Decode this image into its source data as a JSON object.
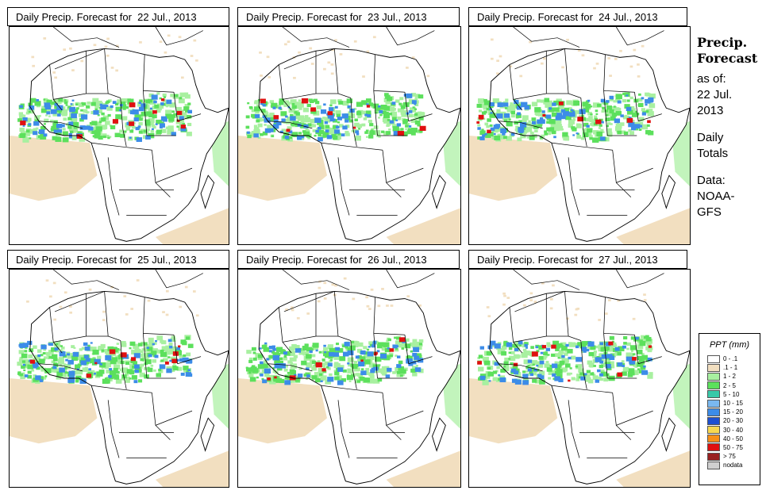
{
  "panels": [
    {
      "title": "Daily Precip. Forecast for  22 Jul., 2013"
    },
    {
      "title": "Daily Precip. Forecast for  23 Jul., 2013"
    },
    {
      "title": "Daily Precip. Forecast for  24 Jul., 2013"
    },
    {
      "title": "Daily Precip. Forecast for  25 Jul., 2013"
    },
    {
      "title": "Daily Precip. Forecast for  26 Jul., 2013"
    },
    {
      "title": "Daily Precip. Forecast for  27 Jul., 2013"
    }
  ],
  "side": {
    "title_line1": "Precip.",
    "title_line2": "Forecast",
    "asof_line1": "as of:",
    "asof_line2": "22 Jul.",
    "asof_line3": "2013",
    "daily_line1": "Daily",
    "daily_line2": "Totals",
    "data_line1": "Data:",
    "data_line2": "NOAA-",
    "data_line3": "GFS"
  },
  "legend": {
    "title": "PPT (mm)",
    "items": [
      {
        "label": "0 - .1",
        "color": "#ffffff"
      },
      {
        "label": ".1 - 1",
        "color": "#f2dfc0"
      },
      {
        "label": "1 - 2",
        "color": "#a8f0a0"
      },
      {
        "label": "2 - 5",
        "color": "#5ce05c"
      },
      {
        "label": "5 - 10",
        "color": "#38c8a8"
      },
      {
        "label": "10 - 15",
        "color": "#7ab8f0"
      },
      {
        "label": "15 - 20",
        "color": "#3c8ce8"
      },
      {
        "label": "20 - 30",
        "color": "#1e50d0"
      },
      {
        "label": "30 - 40",
        "color": "#f8d850"
      },
      {
        "label": "40 - 50",
        "color": "#f89018"
      },
      {
        "label": "50 - 75",
        "color": "#e01010"
      },
      {
        "label": "> 75",
        "color": "#982020"
      },
      {
        "label": "nodata",
        "color": "#d0d0d0"
      }
    ]
  },
  "colors": {
    "dry": "#f2dfc0",
    "light": "#a8f0a0",
    "moderate": "#5ce05c",
    "heavy": "#3c8ce8",
    "extreme": "#e01010"
  }
}
